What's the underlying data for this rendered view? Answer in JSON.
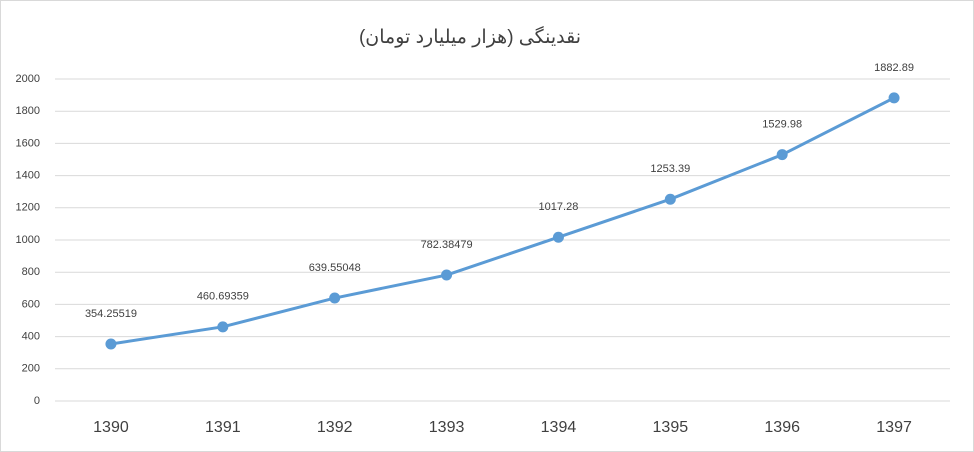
{
  "chart_data": {
    "type": "line",
    "title": "نقدینگی (هزار میلیارد تومان)",
    "categories": [
      "1390",
      "1391",
      "1392",
      "1393",
      "1394",
      "1395",
      "1396",
      "1397"
    ],
    "series": [
      {
        "color": "#5b9bd5",
        "values": [
          354.25519,
          460.69359,
          639.55048,
          782.38479,
          1017.28,
          1253.39,
          1529.98,
          1882.89
        ]
      }
    ],
    "ylim": [
      0,
      2000
    ],
    "yticks": [
      0,
      200,
      400,
      600,
      800,
      1000,
      1200,
      1400,
      1600,
      1800,
      2000
    ],
    "grid": true
  }
}
